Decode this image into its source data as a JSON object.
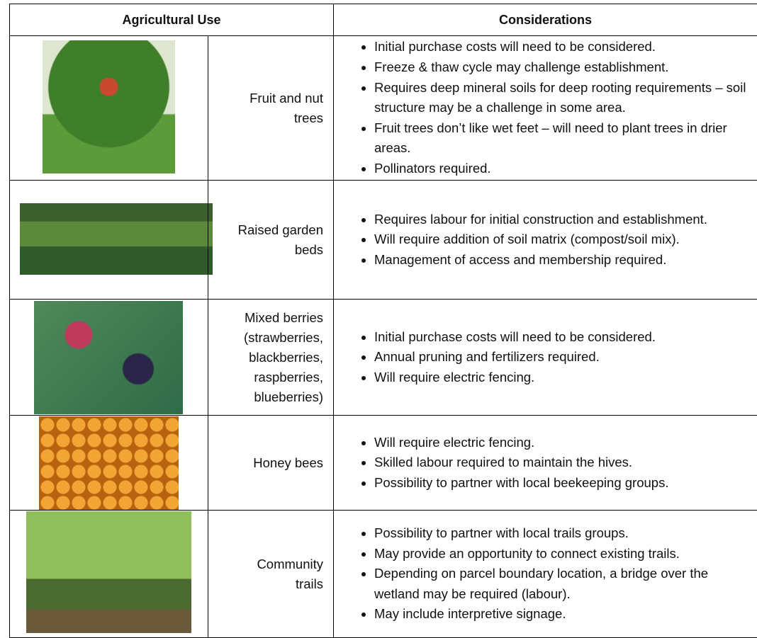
{
  "table": {
    "header": [
      "Agricultural Use",
      "Considerations"
    ],
    "rows": [
      {
        "use": "Fruit and nut trees",
        "considerations": [
          "Initial purchase costs will need to be considered.",
          "Freeze & thaw cycle may challenge establishment.",
          "Requires deep mineral soils for deep rooting requirements – soil structure may be a challenge in some area.",
          "Fruit trees don’t like wet feet – will need to plant trees in drier areas.",
          "Pollinators required."
        ]
      },
      {
        "use": "Raised garden beds",
        "considerations": [
          "Requires labour for initial construction and establishment.",
          "Will require addition of soil matrix (compost/soil mix).",
          "Management of access and membership required."
        ]
      },
      {
        "use": "Mixed berries (strawberries, blackberries, raspberries, blueberries)",
        "considerations": [
          "Initial purchase costs will need to be considered.",
          "Annual pruning and fertilizers required.",
          "Will require electric fencing."
        ]
      },
      {
        "use": "Honey bees",
        "considerations": [
          "Will require electric fencing.",
          "Skilled labour required to maintain the hives.",
          "Possibility to partner with local beekeeping groups."
        ]
      },
      {
        "use": "Community trails",
        "considerations": [
          "Possibility to partner with local trails groups.",
          "May provide an opportunity to connect existing trails.",
          "Depending on parcel boundary location, a bridge over the wetland may be required (labour).",
          "May include interpretive signage."
        ]
      }
    ]
  }
}
